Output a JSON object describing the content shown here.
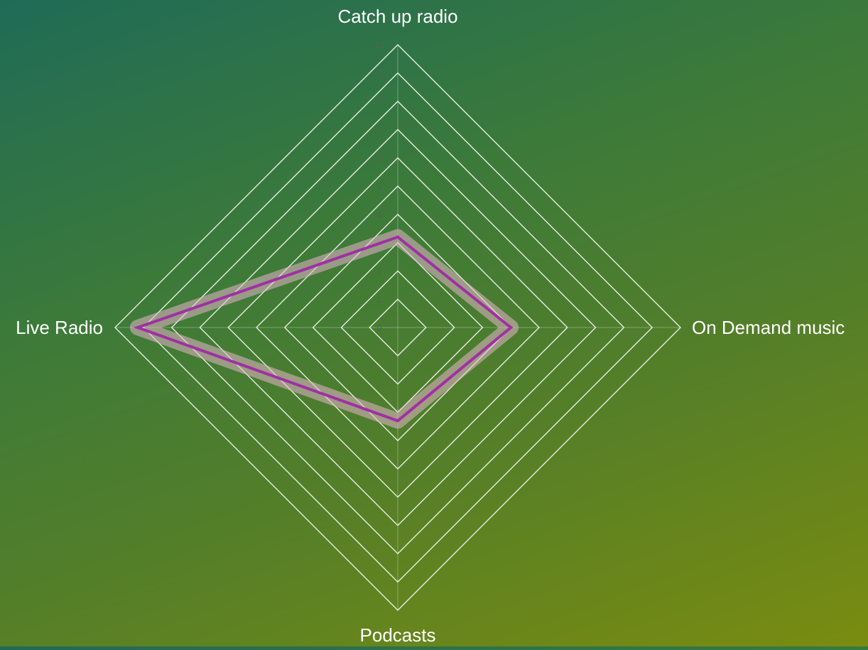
{
  "chart_data": {
    "type": "radar",
    "categories": [
      "Catch up radio",
      "On Demand music",
      "Podcasts",
      "Live Radio"
    ],
    "series": [
      {
        "values": [
          3.2,
          4.0,
          3.3,
          9.2
        ],
        "color": "#a12fa6",
        "glow_color": "#e3b6c8"
      }
    ],
    "rlim": [
      0,
      10
    ],
    "ticks": [
      "0",
      "1",
      "2",
      "3",
      "4",
      "5",
      "6",
      "7",
      "8",
      "9",
      "10"
    ],
    "grid": true,
    "background_gradient": [
      "#1f6b57",
      "#7a8c10"
    ]
  }
}
